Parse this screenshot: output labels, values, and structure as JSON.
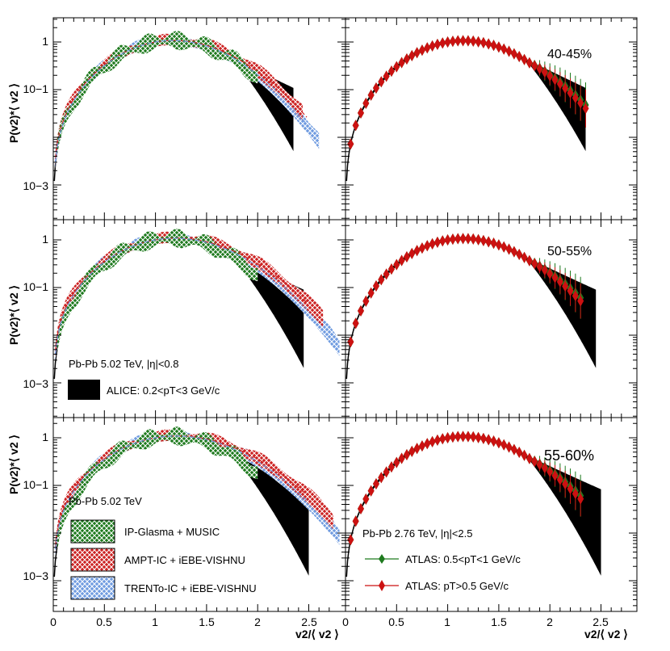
{
  "chart_data": {
    "type": "line",
    "title": "",
    "xlabel": "v2/⟨ v2 ⟩",
    "ylabel": "P(v2)*⟨ v2 ⟩",
    "yscale": "log",
    "xlim_left": [
      0,
      2.85
    ],
    "xlim_right": [
      0,
      2.85
    ],
    "ylim": [
      0.00012,
      3.0
    ],
    "x_ticks": [
      0,
      0.5,
      1,
      1.5,
      2,
      2.5
    ],
    "x_tick_labels": [
      "0",
      "0.5",
      "1",
      "1.5",
      "2",
      "2.5"
    ],
    "y_ticks": [
      0.001,
      0.1,
      1
    ],
    "y_tick_labels": [
      "10−3",
      "10−1",
      "1"
    ],
    "centralities": [
      "40-45%",
      "50-55%",
      "55-60%"
    ],
    "alice_band_right_edge": [
      2.35,
      2.45,
      2.5
    ],
    "model_tail_scale": [
      1.0,
      1.08,
      1.12
    ],
    "legend": {
      "alice_system": "Pb-Pb 5.02 TeV, |η|<0.8",
      "alice_label": "ALICE: 0.2<pT<3 GeV/c",
      "model_system": "Pb-Pb 5.02 TeV",
      "models": [
        "IP-Glasma + MUSIC",
        "AMPT-IC + iEBE-VISHNU",
        "TRENTo-IC + iEBE-VISHNU"
      ],
      "atlas_system": "Pb-Pb 2.76 TeV, |η|<2.5",
      "atlas": [
        "ATLAS: 0.5<pT<1 GeV/c",
        "ATLAS: pT>0.5 GeV/c"
      ]
    },
    "series": [
      {
        "name": "IP-Glasma + MUSIC",
        "color": "#1e7a1e"
      },
      {
        "name": "AMPT-IC + iEBE-VISHNU",
        "color": "#cc2222"
      },
      {
        "name": "TRENTo-IC + iEBE-VISHNU",
        "color": "#6f9be0"
      },
      {
        "name": "ATLAS: 0.5<pT<1 GeV/c",
        "color": "#1e7a1e"
      },
      {
        "name": "ATLAS: pT>0.5 GeV/c",
        "color": "#cc1111"
      },
      {
        "name": "ALICE: 0.2<pT<3 GeV/c",
        "color": "#000000"
      }
    ],
    "atlas_x": [
      0.05,
      0.1,
      0.15,
      0.2,
      0.25,
      0.3,
      0.35,
      0.4,
      0.45,
      0.5,
      0.55,
      0.6,
      0.65,
      0.7,
      0.75,
      0.8,
      0.85,
      0.9,
      0.95,
      1.0,
      1.05,
      1.1,
      1.15,
      1.2,
      1.25,
      1.3,
      1.35,
      1.4,
      1.45,
      1.5,
      1.55,
      1.6,
      1.65,
      1.7,
      1.75,
      1.8,
      1.85,
      1.9,
      1.95,
      2.0,
      2.05,
      2.1,
      2.15,
      2.2,
      2.25,
      2.3,
      2.35
    ]
  }
}
